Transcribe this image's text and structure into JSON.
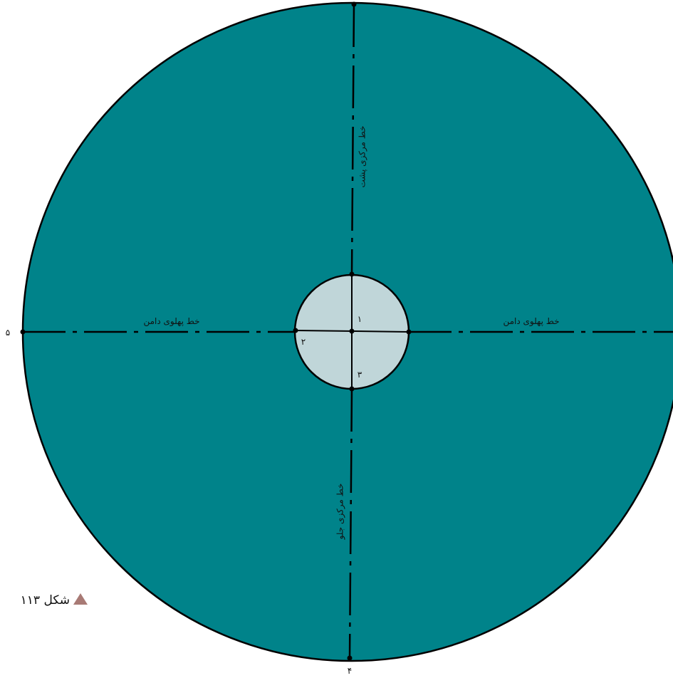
{
  "figure": {
    "caption": "شکل ۱۱۳",
    "colors": {
      "skirt_fill": "#00838a",
      "waist_fill": "#c0d6d9",
      "line": "#000000",
      "caption_marker": "#a87a75"
    },
    "labels": {
      "center_back": "خط مرکزی پشت",
      "center_front": "خط مرکزی جلو",
      "side_left": "خط پهلوی دامن",
      "side_right": "خط پهلوی دامن"
    },
    "points": {
      "p1": "۱",
      "p2": "۲",
      "p3": "۳",
      "p4": "۴",
      "p5": "۵"
    }
  }
}
